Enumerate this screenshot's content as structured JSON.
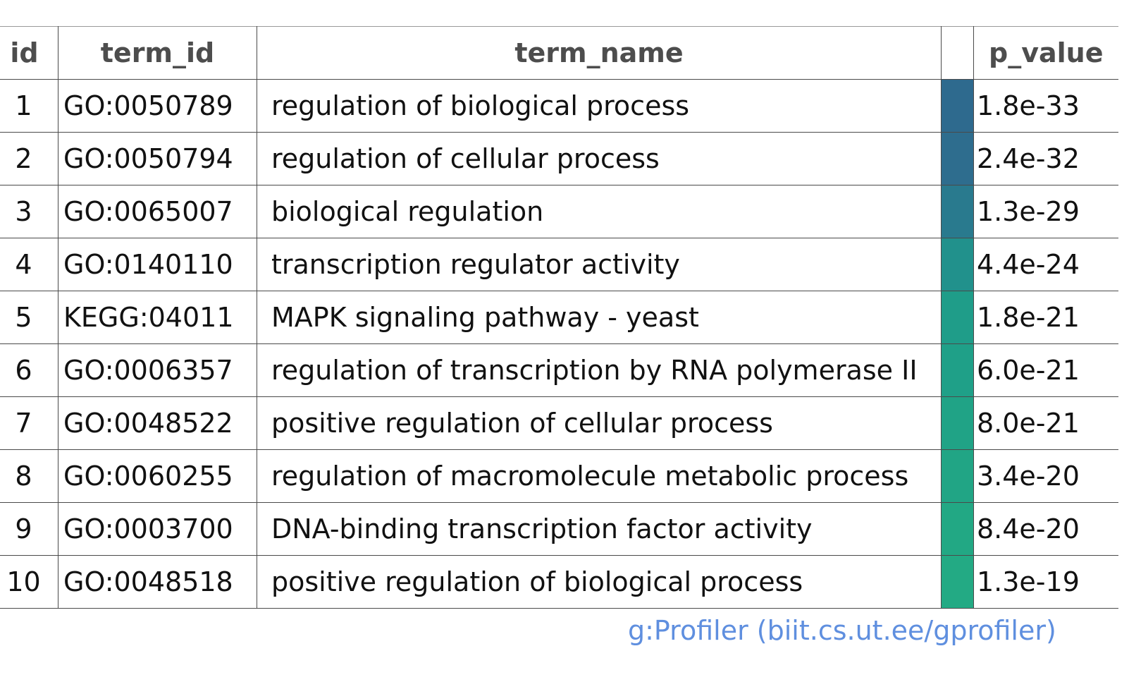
{
  "chart_data": {
    "type": "table",
    "columns": [
      "id",
      "term_id",
      "term_name",
      "",
      "p_value"
    ],
    "rows": [
      {
        "id": "1",
        "term_id": "GO:0050789",
        "term_name": "regulation of biological process",
        "color": "#2e6a8e",
        "p_value": "1.8e-33"
      },
      {
        "id": "2",
        "term_id": "GO:0050794",
        "term_name": "regulation of cellular process",
        "color": "#2e6d8e",
        "p_value": "2.4e-32"
      },
      {
        "id": "3",
        "term_id": "GO:0065007",
        "term_name": "biological regulation",
        "color": "#297a8e",
        "p_value": "1.3e-29"
      },
      {
        "id": "4",
        "term_id": "GO:0140110",
        "term_name": "transcription regulator activity",
        "color": "#21918c",
        "p_value": "4.4e-24"
      },
      {
        "id": "5",
        "term_id": "KEGG:04011",
        "term_name": "MAPK signaling pathway - yeast",
        "color": "#1f9d89",
        "p_value": "1.8e-21"
      },
      {
        "id": "6",
        "term_id": "GO:0006357",
        "term_name": "regulation of transcription by RNA polymerase II",
        "color": "#1fa088",
        "p_value": "6.0e-21"
      },
      {
        "id": "7",
        "term_id": "GO:0048522",
        "term_name": "positive regulation of cellular process",
        "color": "#20a386",
        "p_value": "8.0e-21"
      },
      {
        "id": "8",
        "term_id": "GO:0060255",
        "term_name": "regulation of macromolecule metabolic process",
        "color": "#21a585",
        "p_value": "3.4e-20"
      },
      {
        "id": "9",
        "term_id": "GO:0003700",
        "term_name": "DNA-binding transcription factor activity",
        "color": "#22a884",
        "p_value": "8.4e-20"
      },
      {
        "id": "10",
        "term_id": "GO:0048518",
        "term_name": "positive regulation of biological process",
        "color": "#23aa84",
        "p_value": "1.3e-19"
      }
    ]
  },
  "footer": {
    "credit": "g:Profiler (biit.cs.ut.ee/gprofiler)"
  }
}
